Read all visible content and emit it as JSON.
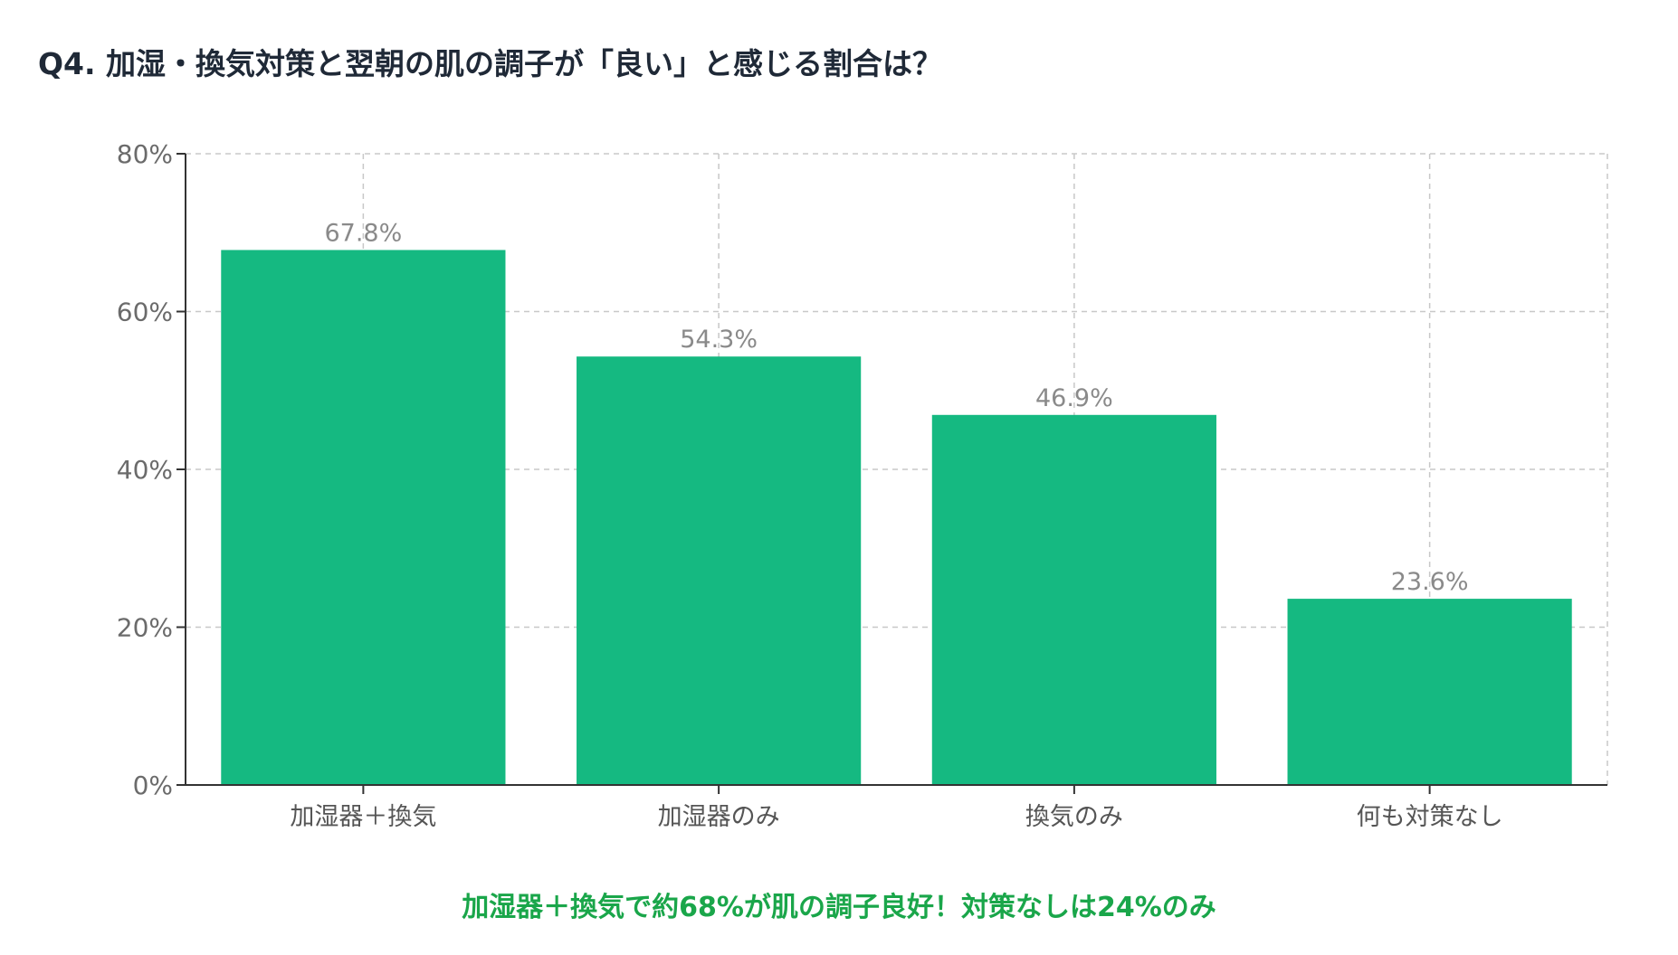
{
  "chart_data": {
    "type": "bar",
    "title": "Q4. 加湿・換気対策と翌朝の肌の調子が「良い」と感じる割合は？",
    "categories": [
      "加湿器＋換気",
      "加湿器のみ",
      "換気のみ",
      "何も対策なし"
    ],
    "values": [
      67.8,
      54.3,
      46.9,
      23.6
    ],
    "data_labels": [
      "67.8%",
      "54.3%",
      "46.9%",
      "23.6%"
    ],
    "yticks": [
      0,
      20,
      40,
      60,
      80
    ],
    "ytick_labels": [
      "0%",
      "20%",
      "40%",
      "60%",
      "80%"
    ],
    "ylim": [
      0,
      80
    ],
    "xlabel": "",
    "ylabel": "",
    "grid": true,
    "bar_color": "#15b981",
    "caption": "加湿器＋換気で約68%が肌の調子良好！対策なしは24%のみ",
    "caption_color": "#1aa64a"
  }
}
